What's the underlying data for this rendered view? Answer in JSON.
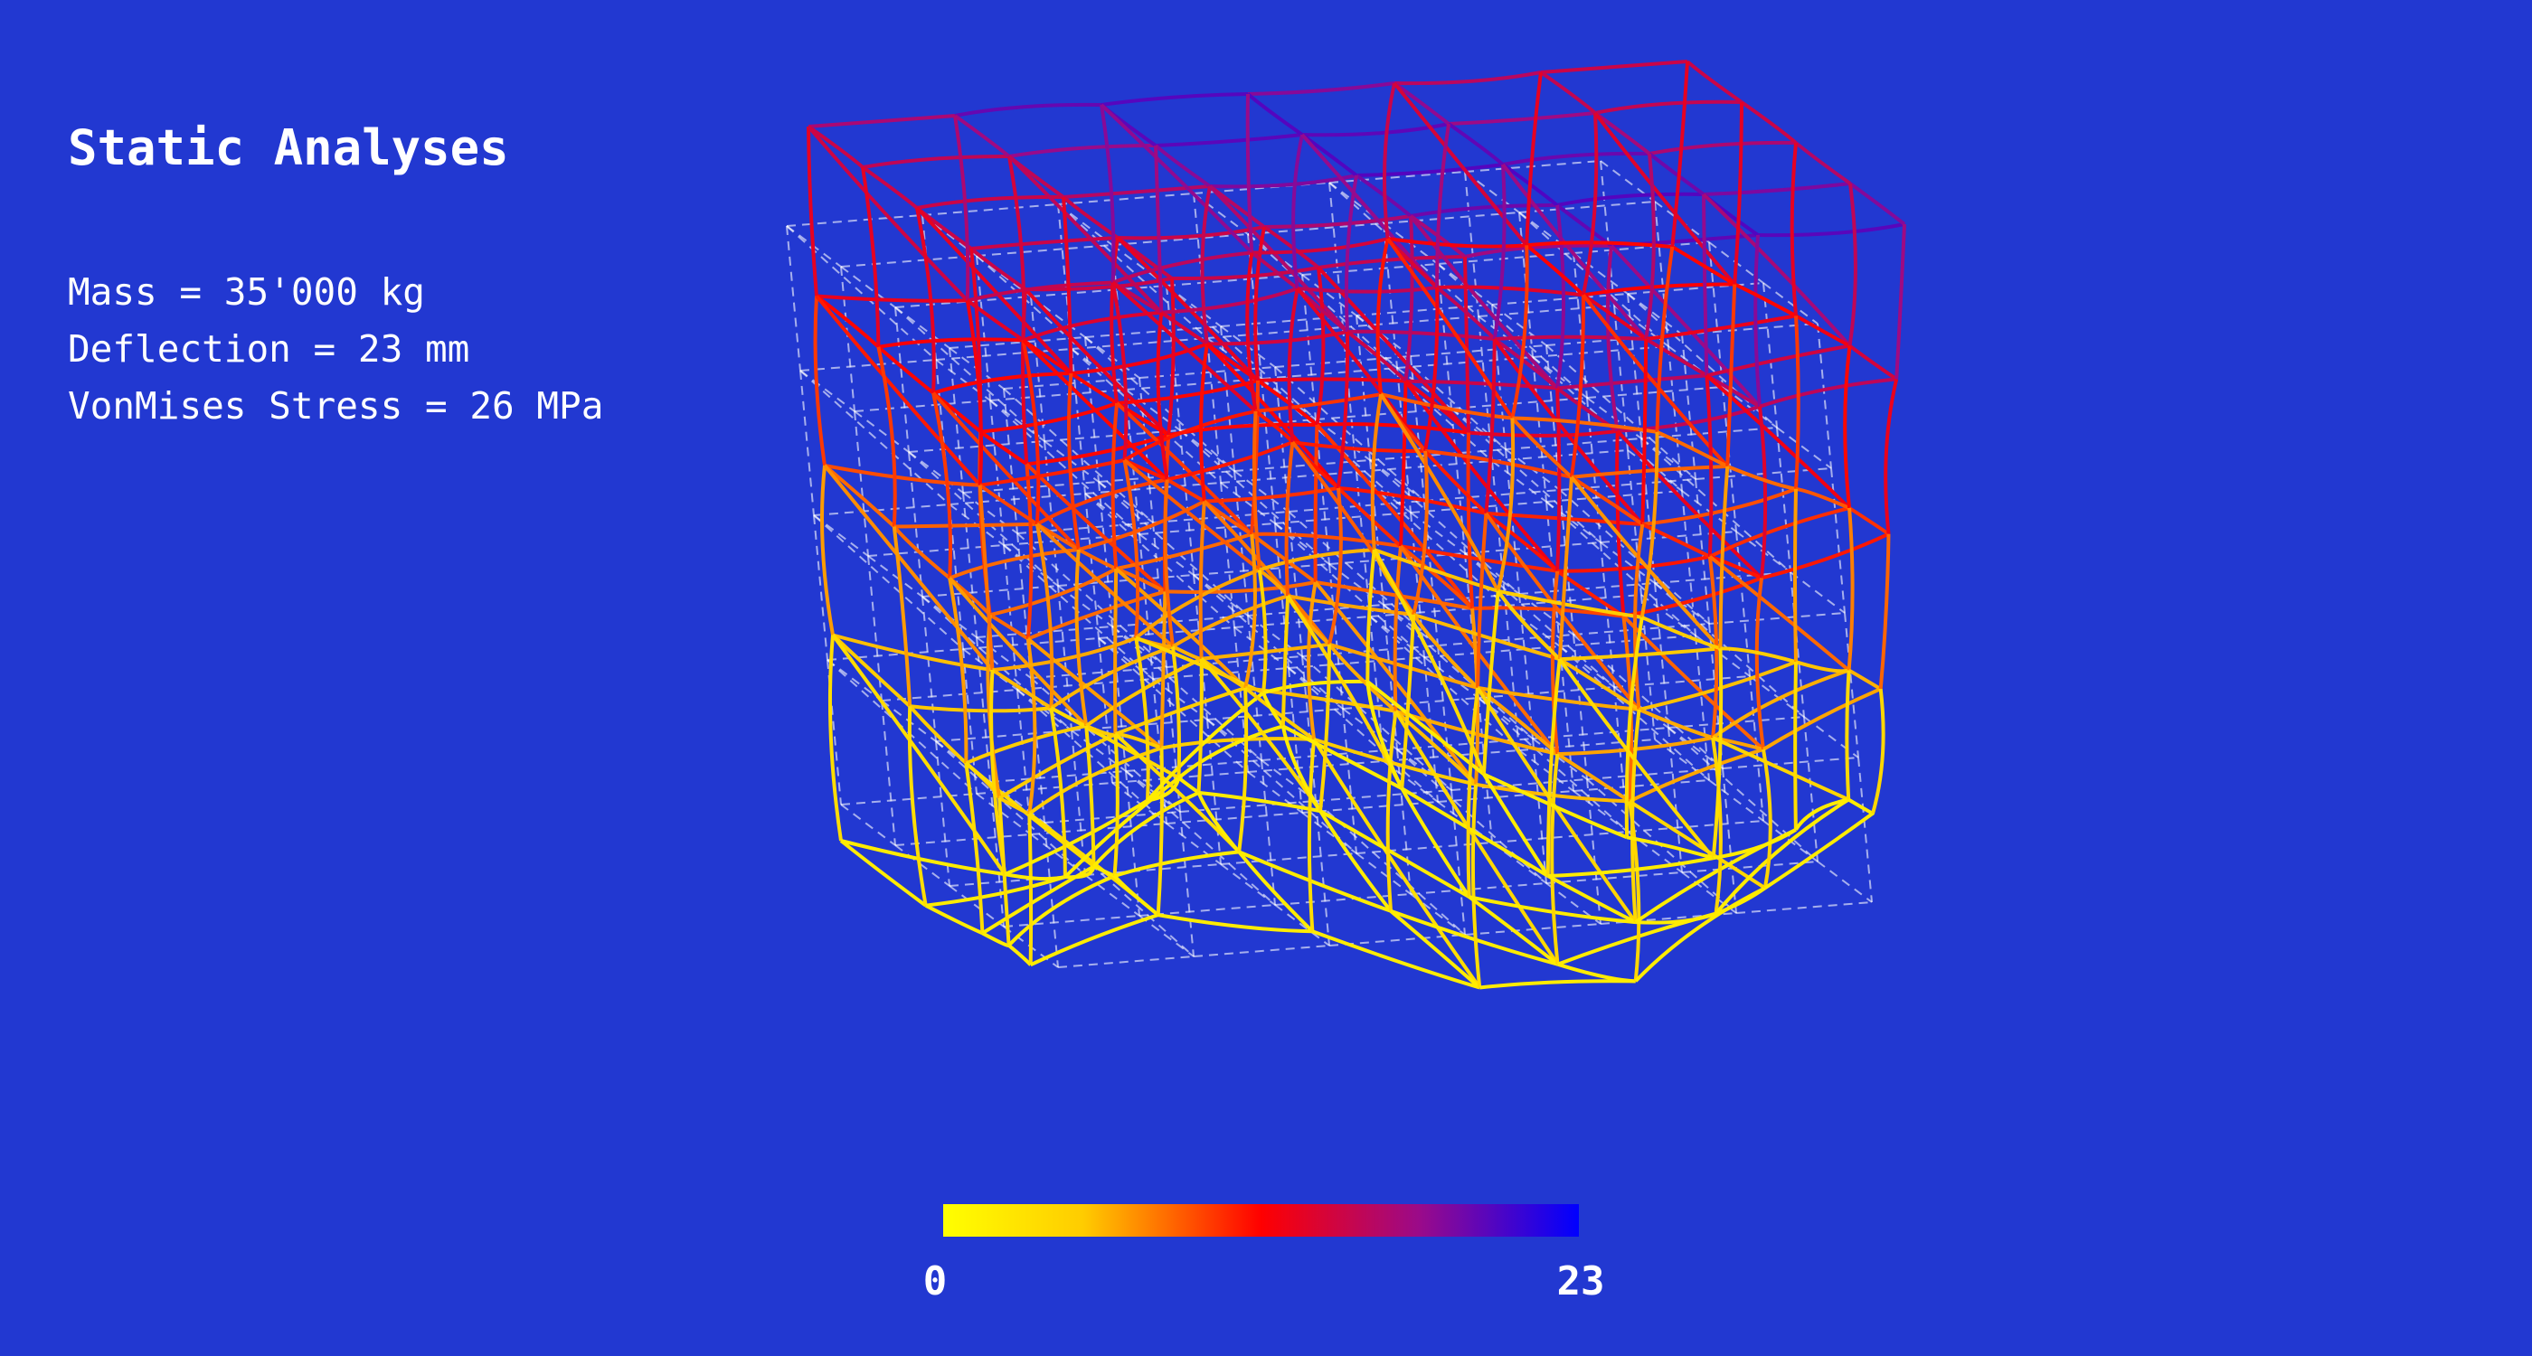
{
  "header": {
    "title": "Static Analyses"
  },
  "metrics": [
    "Mass = 35'000 kg",
    "Deflection = 23 mm",
    "VonMises Stress = 26 MPa"
  ],
  "colorbar": {
    "min": 0,
    "max": 23
  }
}
